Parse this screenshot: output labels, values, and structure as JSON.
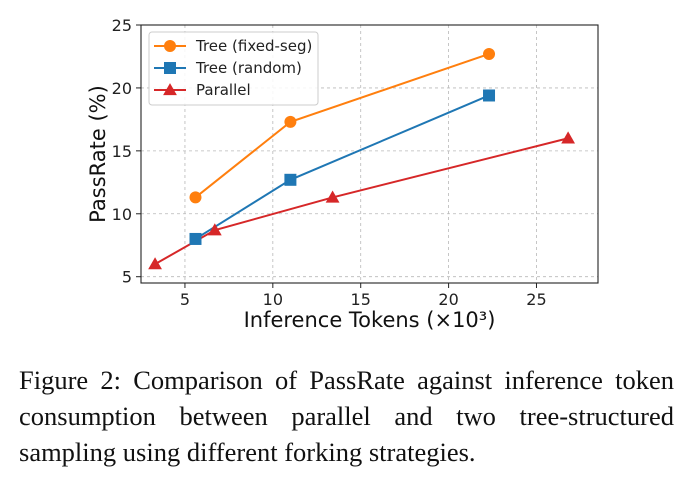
{
  "chart_data": {
    "type": "line",
    "xlabel": "Inference Tokens (×10³)",
    "ylabel": "PassRate (%)",
    "xlim": [
      2.5,
      28.5
    ],
    "ylim": [
      4.5,
      25
    ],
    "xticks": [
      5,
      10,
      15,
      20,
      25
    ],
    "yticks": [
      5,
      10,
      15,
      20,
      25
    ],
    "grid": true,
    "legend_position": "top-left",
    "series": [
      {
        "name": "Tree (fixed-seg)",
        "color": "#ff7f0e",
        "marker": "circle",
        "x": [
          5.6,
          11.0,
          22.3
        ],
        "y": [
          11.3,
          17.3,
          22.7
        ]
      },
      {
        "name": "Tree (random)",
        "color": "#1f77b4",
        "marker": "square",
        "x": [
          5.6,
          11.0,
          22.3
        ],
        "y": [
          8.0,
          12.7,
          19.4
        ]
      },
      {
        "name": "Parallel",
        "color": "#d62728",
        "marker": "triangle",
        "x": [
          3.3,
          6.7,
          13.4,
          26.8
        ],
        "y": [
          6.0,
          8.7,
          11.3,
          16.0
        ]
      }
    ]
  },
  "caption": "Figure 2: Comparison of PassRate against inference token consumption between parallel and two tree-structured sampling using different forking strategies."
}
